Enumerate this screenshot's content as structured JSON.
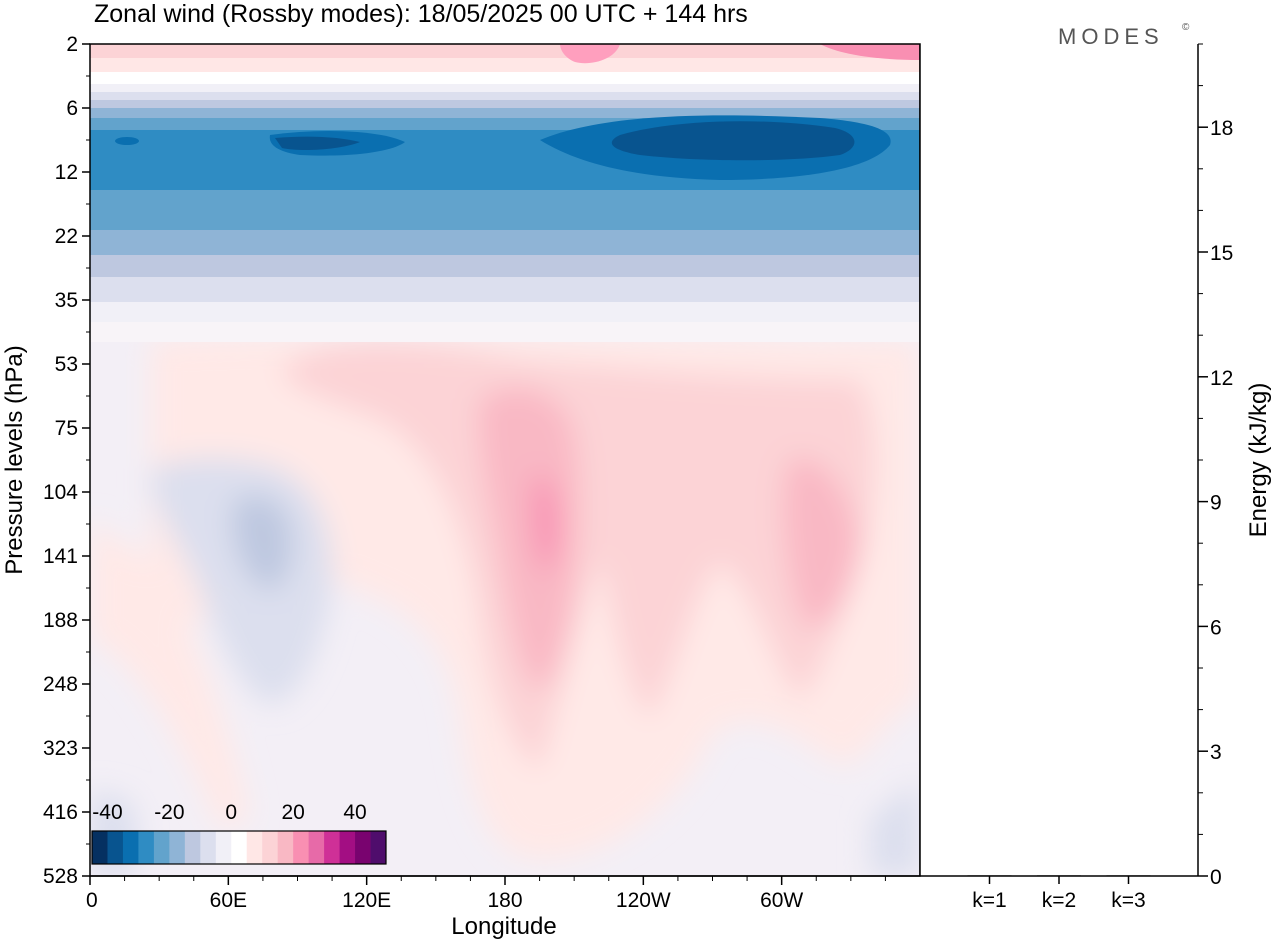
{
  "header": {
    "title": "Zonal wind (Rossby modes):  18/05/2025  00 UTC  + 144 hrs",
    "brand": "MODES",
    "brand_mark": "©"
  },
  "chart_data": [
    {
      "type": "heatmap",
      "xlabel": "Longitude",
      "ylabel": "Pressure levels (hPa)",
      "x_ticks": [
        "0",
        "60E",
        "120E",
        "180",
        "120W",
        "60W"
      ],
      "x_tick_degrees": [
        0,
        60,
        120,
        180,
        240,
        300
      ],
      "xlim_degrees": [
        0,
        360
      ],
      "y_ticks": [
        "2",
        "6",
        "12",
        "22",
        "35",
        "53",
        "75",
        "104",
        "141",
        "188",
        "248",
        "323",
        "416",
        "528"
      ],
      "y_scale": "pressure levels, evenly spaced",
      "grid": false,
      "colorbar": {
        "location": "bottom-left",
        "tick_labels": [
          "-40",
          "-20",
          "0",
          "20",
          "40"
        ],
        "levels": [
          -40,
          -35,
          -30,
          -25,
          -20,
          -15,
          -10,
          -5,
          0,
          5,
          10,
          15,
          20,
          25,
          30,
          35,
          40,
          45
        ],
        "colors": [
          "#053061",
          "#08548f",
          "#0a6fb0",
          "#2f8cc3",
          "#62a3cc",
          "#8fb4d6",
          "#bec8e0",
          "#dcdfee",
          "#f1f0f7",
          "#ffffff",
          "#ffe7e6",
          "#fcd3d6",
          "#f9b8c4",
          "#f98fb2",
          "#e76aa8",
          "#cf3097",
          "#a30e83",
          "#79036f",
          "#4f0d6c"
        ]
      },
      "features": [
        {
          "type": "jet",
          "name": "stratospheric easterly jet",
          "pressure_hPa_range": [
            6,
            22
          ],
          "peak_value": -40,
          "peak_longitudes": [
            [
              50,
              110
            ],
            [
              240,
              320
            ]
          ]
        },
        {
          "type": "weak westerlies",
          "pressure_hPa_range": [
            2,
            6
          ],
          "peak_value": 15
        },
        {
          "type": "westerly maxima",
          "pressure_hPa": 120,
          "longitudes": [
            190,
            290
          ],
          "peak_value": 15
        },
        {
          "type": "easterly minimum",
          "pressure_hPa": 130,
          "longitude": 75,
          "peak_value": -10
        }
      ]
    },
    {
      "type": "bar",
      "categories": [
        "k=1",
        "k=2",
        "k=3"
      ],
      "values": [
        0.02,
        0.02,
        0.02
      ],
      "ylabel": "Energy (kJ/kg)",
      "yticks": [
        "0",
        "3",
        "6",
        "9",
        "12",
        "15",
        "18"
      ],
      "ylim": [
        0,
        20
      ]
    }
  ]
}
